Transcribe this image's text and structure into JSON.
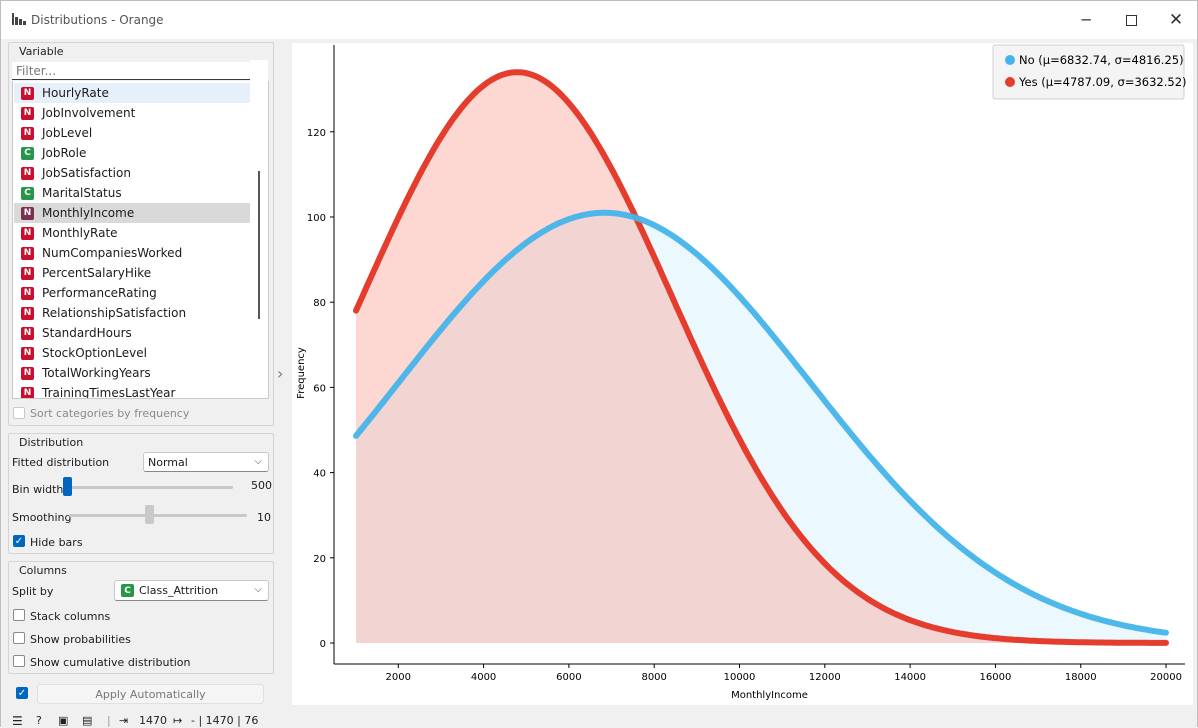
{
  "window": {
    "title": "Distributions - Orange"
  },
  "variable_box": {
    "title": "Variable",
    "filter_placeholder": "Filter...",
    "items": [
      {
        "badge": "N",
        "label": "HourlyRate"
      },
      {
        "badge": "N",
        "label": "JobInvolvement"
      },
      {
        "badge": "N",
        "label": "JobLevel"
      },
      {
        "badge": "C",
        "label": "JobRole"
      },
      {
        "badge": "N",
        "label": "JobSatisfaction"
      },
      {
        "badge": "C",
        "label": "MaritalStatus"
      },
      {
        "badge": "N",
        "label": "MonthlyIncome"
      },
      {
        "badge": "N",
        "label": "MonthlyRate"
      },
      {
        "badge": "N",
        "label": "NumCompaniesWorked"
      },
      {
        "badge": "N",
        "label": "PercentSalaryHike"
      },
      {
        "badge": "N",
        "label": "PerformanceRating"
      },
      {
        "badge": "N",
        "label": "RelationshipSatisfaction"
      },
      {
        "badge": "N",
        "label": "StandardHours"
      },
      {
        "badge": "N",
        "label": "StockOptionLevel"
      },
      {
        "badge": "N",
        "label": "TotalWorkingYears"
      },
      {
        "badge": "N",
        "label": "TrainingTimesLastYear"
      }
    ],
    "selected_index": 6,
    "hovered_index": 0,
    "sort_label": "Sort categories by frequency"
  },
  "distribution_box": {
    "title": "Distribution",
    "fitted_label": "Fitted distribution",
    "fitted_value": "Normal",
    "bin_label": "Bin width",
    "bin_value": "500",
    "bin_level": 0.0,
    "smoothing_label": "Smoothing",
    "smoothing_value": "10",
    "smoothing_level": 0.45,
    "hide_bars_label": "Hide bars",
    "hide_bars_checked": true
  },
  "columns_box": {
    "title": "Columns",
    "split_label": "Split by",
    "split_badge": "C",
    "split_value": "Class_Attrition",
    "stack_label": "Stack columns",
    "prob_label": "Show probabilities",
    "cum_label": "Show cumulative distribution"
  },
  "apply": {
    "label": "Apply Automatically",
    "checked": true
  },
  "statusbar": {
    "in_count": "1470",
    "out_text": "- | 1470 | 76"
  },
  "colors": {
    "no": "#46b4ea",
    "yes": "#e43d2e",
    "accent": "#0067c0"
  },
  "chart_data": {
    "type": "line",
    "xlabel": "MonthlyIncome",
    "ylabel": "Frequency",
    "xticks": [
      2000,
      4000,
      6000,
      8000,
      10000,
      12000,
      14000,
      16000,
      18000,
      20000
    ],
    "yticks": [
      0,
      20,
      40,
      60,
      80,
      100,
      120
    ],
    "xlim": [
      1009,
      19999
    ],
    "ylim": [
      0,
      140
    ],
    "legend": "top-right",
    "series": [
      {
        "name": "No (μ=6832.74, σ=4816.25)",
        "color": "#46b4ea",
        "mean": 6832.74,
        "sd": 4816.25,
        "peak": 101
      },
      {
        "name": "Yes (μ=4787.09, σ=3632.52)",
        "color": "#e43d2e",
        "mean": 4787.09,
        "sd": 3632.52,
        "peak": 134
      }
    ]
  }
}
